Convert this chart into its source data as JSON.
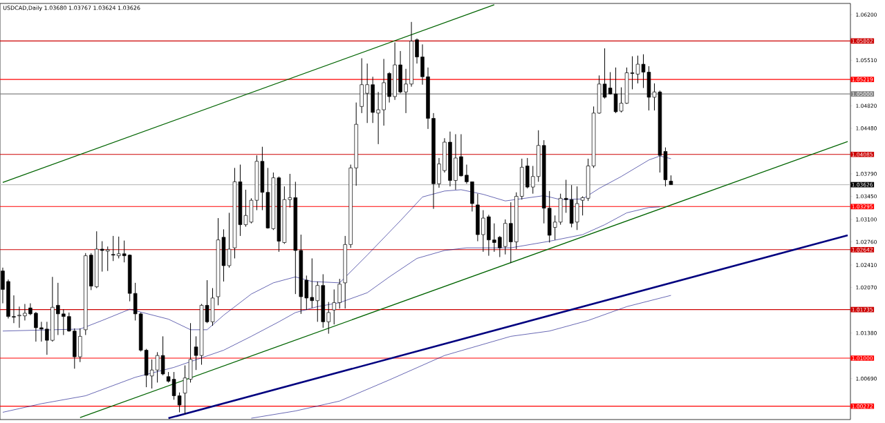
{
  "chart_data": {
    "type": "candlestick",
    "title": "USDCAD,Daily  1.03680 1.03767 1.03624 1.03626",
    "color": "#000000",
    "categories": [
      null,
      null,
      null,
      null,
      null,
      null,
      null,
      null,
      null,
      null,
      null,
      null,
      null,
      null,
      null,
      null,
      null,
      null,
      null,
      null,
      null,
      null,
      null,
      null,
      null,
      null,
      null,
      null,
      null,
      null,
      null,
      null,
      null,
      null,
      null,
      null,
      null,
      null,
      null,
      null,
      null,
      null,
      null,
      null,
      null,
      null,
      null,
      null,
      null,
      null,
      null,
      null,
      null,
      null,
      null,
      null,
      null,
      null,
      null,
      null,
      null,
      null,
      null,
      null,
      null,
      null,
      null,
      null,
      null,
      null,
      null,
      null,
      null,
      null,
      null,
      null,
      null,
      null,
      null,
      null,
      null,
      null,
      null,
      null,
      null,
      null,
      null,
      null,
      null,
      null,
      null,
      null,
      null,
      null,
      null,
      null,
      null,
      null,
      null,
      null,
      null,
      null,
      null,
      null,
      null,
      null,
      null,
      null,
      null,
      null,
      null,
      null,
      null,
      null,
      null,
      null,
      null,
      null,
      null,
      null,
      null,
      null,
      null,
      null,
      null,
      null,
      null,
      null,
      null,
      null,
      null,
      null,
      null,
      null,
      null,
      null,
      null,
      null,
      null,
      null,
      null,
      null,
      null,
      null,
      null,
      null,
      null,
      null,
      null,
      null,
      null,
      null,
      null,
      null
    ],
    "ohlc": [
      [
        1.0232,
        1.0237,
        1.0183,
        1.0204
      ],
      [
        1.0216,
        1.0219,
        1.016,
        1.0163
      ],
      [
        1.0163,
        1.0195,
        1.0153,
        1.0162
      ],
      [
        1.0164,
        1.0178,
        1.0146,
        1.0165
      ],
      [
        1.0164,
        1.0182,
        1.0157,
        1.0168
      ],
      [
        1.0176,
        1.0183,
        1.0165,
        1.0167
      ],
      [
        1.0168,
        1.017,
        1.0125,
        1.0146
      ],
      [
        1.0146,
        1.0155,
        1.0125,
        1.0144
      ],
      [
        1.0144,
        1.0155,
        1.0105,
        1.0127
      ],
      [
        1.0127,
        1.0223,
        1.0125,
        1.0177
      ],
      [
        1.018,
        1.0214,
        1.0135,
        1.0167
      ],
      [
        1.0167,
        1.0174,
        1.0135,
        1.0163
      ],
      [
        1.0163,
        1.0169,
        1.014,
        1.0141
      ],
      [
        1.0141,
        1.0145,
        1.0084,
        1.0102
      ],
      [
        1.0102,
        1.0145,
        1.0094,
        1.0133
      ],
      [
        1.0143,
        1.0259,
        1.0135,
        1.0255
      ],
      [
        1.0256,
        1.0259,
        1.0203,
        1.0209
      ],
      [
        1.0208,
        1.0292,
        1.0206,
        1.0265
      ],
      [
        1.0265,
        1.0277,
        1.0231,
        1.0263
      ],
      [
        1.0262,
        1.0269,
        1.0232,
        1.0264
      ],
      [
        1.0257,
        1.0285,
        1.0247,
        1.0256
      ],
      [
        1.0255,
        1.0284,
        1.0251,
        1.0258
      ],
      [
        1.0258,
        1.0278,
        1.0245,
        1.0255
      ],
      [
        1.0256,
        1.0257,
        1.0186,
        1.0198
      ],
      [
        1.0198,
        1.0214,
        1.0157,
        1.0167
      ],
      [
        1.0167,
        1.0169,
        1.011,
        1.0112
      ],
      [
        1.0112,
        1.0114,
        1.0056,
        1.0074
      ],
      [
        1.0073,
        1.0098,
        1.0054,
        1.0082
      ],
      [
        1.0082,
        1.0109,
        1.0063,
        1.0104
      ],
      [
        1.0104,
        1.0133,
        1.0074,
        1.0076
      ],
      [
        1.0072,
        1.0079,
        1.0063,
        1.0065
      ],
      [
        1.0068,
        1.0079,
        1.0037,
        1.0043
      ],
      [
        1.0043,
        1.0048,
        1.0018,
        1.0029
      ],
      [
        1.0047,
        1.0089,
        1.0015,
        1.007
      ],
      [
        1.0068,
        1.0153,
        1.0063,
        1.0098
      ],
      [
        1.0117,
        1.0133,
        1.0082,
        1.0104
      ],
      [
        1.0104,
        1.0182,
        1.009,
        1.018
      ],
      [
        1.018,
        1.0218,
        1.0153,
        1.0155
      ],
      [
        1.0155,
        1.0206,
        1.0149,
        1.0191
      ],
      [
        1.0193,
        1.0312,
        1.018,
        1.0279
      ],
      [
        1.0283,
        1.0295,
        1.0216,
        1.024
      ],
      [
        1.024,
        1.032,
        1.0237,
        1.0265
      ],
      [
        1.0267,
        1.0388,
        1.0251,
        1.0367
      ],
      [
        1.0367,
        1.0393,
        1.0285,
        1.0302
      ],
      [
        1.0302,
        1.0355,
        1.0299,
        1.0316
      ],
      [
        1.0306,
        1.0342,
        1.0304,
        1.0339
      ],
      [
        1.0339,
        1.0407,
        1.0324,
        1.0398
      ],
      [
        1.0398,
        1.042,
        1.0324,
        1.0351
      ],
      [
        1.0351,
        1.0388,
        1.0296,
        1.0297
      ],
      [
        1.0296,
        1.0381,
        1.0294,
        1.0373
      ],
      [
        1.0373,
        1.0375,
        1.0261,
        1.0277
      ],
      [
        1.0275,
        1.036,
        1.0273,
        1.034
      ],
      [
        1.034,
        1.0379,
        1.0328,
        1.0343
      ],
      [
        1.0343,
        1.0367,
        1.0197,
        1.0263
      ],
      [
        1.0263,
        1.0287,
        1.0167,
        1.0193
      ],
      [
        1.0218,
        1.0225,
        1.0173,
        1.0191
      ],
      [
        1.0192,
        1.0251,
        1.0176,
        1.0187
      ],
      [
        1.0187,
        1.0216,
        1.0155,
        1.021
      ],
      [
        1.021,
        1.0227,
        1.0146,
        1.0155
      ],
      [
        1.0155,
        1.0185,
        1.0137,
        1.0169
      ],
      [
        1.0173,
        1.0204,
        1.0151,
        1.0184
      ],
      [
        1.0184,
        1.022,
        1.0175,
        1.0212
      ],
      [
        1.0214,
        1.0285,
        1.0175,
        1.0272
      ],
      [
        1.0272,
        1.0393,
        1.0267,
        1.0388
      ],
      [
        1.0388,
        1.0487,
        1.0361,
        1.0454
      ],
      [
        1.0481,
        1.0554,
        1.0471,
        1.0514
      ],
      [
        1.0501,
        1.0546,
        1.0456,
        1.0514
      ],
      [
        1.0514,
        1.0526,
        1.0456,
        1.0472
      ],
      [
        1.0471,
        1.0503,
        1.0424,
        1.0476
      ],
      [
        1.0476,
        1.0553,
        1.0452,
        1.0517
      ],
      [
        1.0531,
        1.0533,
        1.0487,
        1.0496
      ],
      [
        1.0496,
        1.0578,
        1.0491,
        1.0544
      ],
      [
        1.0544,
        1.0565,
        1.0501,
        1.0503
      ],
      [
        1.0503,
        1.0538,
        1.0471,
        1.0515
      ],
      [
        1.0515,
        1.0609,
        1.0511,
        1.058
      ],
      [
        1.0582,
        1.0584,
        1.0546,
        1.0556
      ],
      [
        1.0556,
        1.0575,
        1.0514,
        1.0526
      ],
      [
        1.0526,
        1.054,
        1.0447,
        1.0463
      ],
      [
        1.0463,
        1.0471,
        1.0326,
        1.0364
      ],
      [
        1.0364,
        1.0403,
        1.0358,
        1.0394
      ],
      [
        1.0384,
        1.0433,
        1.0381,
        1.0427
      ],
      [
        1.0427,
        1.0443,
        1.036,
        1.0369
      ],
      [
        1.0369,
        1.0439,
        1.0355,
        1.0403
      ],
      [
        1.0405,
        1.0439,
        1.0375,
        1.0376
      ],
      [
        1.0377,
        1.0393,
        1.0364,
        1.0367
      ],
      [
        1.0367,
        1.0367,
        1.0322,
        1.0334
      ],
      [
        1.0332,
        1.0349,
        1.0277,
        1.0287
      ],
      [
        1.0287,
        1.0324,
        1.0261,
        1.0312
      ],
      [
        1.0314,
        1.0317,
        1.0255,
        1.0279
      ],
      [
        1.0279,
        1.0304,
        1.0261,
        1.0275
      ],
      [
        1.0283,
        1.0285,
        1.0253,
        1.0267
      ],
      [
        1.0269,
        1.031,
        1.0257,
        1.0304
      ],
      [
        1.0304,
        1.0336,
        1.0244,
        1.0276
      ],
      [
        1.0276,
        1.0351,
        1.0265,
        1.0345
      ],
      [
        1.0345,
        1.0402,
        1.034,
        1.0389
      ],
      [
        1.0391,
        1.0403,
        1.0357,
        1.0359
      ],
      [
        1.0359,
        1.0391,
        1.0349,
        1.0375
      ],
      [
        1.0375,
        1.0445,
        1.0367,
        1.0422
      ],
      [
        1.0422,
        1.043,
        1.0304,
        1.0327
      ],
      [
        1.0327,
        1.0353,
        1.0275,
        1.0286
      ],
      [
        1.0298,
        1.0316,
        1.0279,
        1.0306
      ],
      [
        1.0306,
        1.0349,
        1.0302,
        1.0342
      ],
      [
        1.0342,
        1.037,
        1.032,
        1.034
      ],
      [
        1.034,
        1.0362,
        1.0298,
        1.0304
      ],
      [
        1.0306,
        1.036,
        1.0294,
        1.0334
      ],
      [
        1.0339,
        1.0345,
        1.0316,
        1.0343
      ],
      [
        1.0342,
        1.0402,
        1.0338,
        1.0391
      ],
      [
        1.0391,
        1.0481,
        1.0388,
        1.0471
      ],
      [
        1.0471,
        1.0528,
        1.047,
        1.0515
      ],
      [
        1.0515,
        1.0569,
        1.0493,
        1.0495
      ],
      [
        1.0509,
        1.0533,
        1.0499,
        1.05
      ],
      [
        1.05,
        1.054,
        1.0471,
        1.0473
      ],
      [
        1.0474,
        1.051,
        1.0472,
        1.0486
      ],
      [
        1.0486,
        1.054,
        1.0485,
        1.0532
      ],
      [
        1.0532,
        1.0557,
        1.0507,
        1.0531
      ],
      [
        1.053,
        1.0558,
        1.0516,
        1.0545
      ],
      [
        1.0545,
        1.056,
        1.0509,
        1.0533
      ],
      [
        1.0533,
        1.0542,
        1.0475,
        1.0495
      ],
      [
        1.0495,
        1.0516,
        1.0475,
        1.0503
      ],
      [
        1.0503,
        1.0505,
        1.0381,
        1.0407
      ],
      [
        1.0413,
        1.0419,
        1.036,
        1.037
      ],
      [
        1.0368,
        1.03767,
        1.03624,
        1.03626
      ],
      null,
      null,
      null,
      null,
      null,
      null,
      null,
      null,
      null,
      null,
      null,
      null,
      null,
      null,
      null,
      null,
      null,
      null,
      null,
      null,
      null,
      null,
      null,
      null,
      null,
      null,
      null,
      null,
      null,
      null,
      null,
      null
    ],
    "series": [
      {
        "type": "line",
        "color": "#000080",
        "values": [
          1.0141,
          null,
          null,
          null,
          null,
          null,
          null,
          null,
          null,
          null,
          null,
          null,
          null,
          null,
          1.0144,
          null,
          null,
          null,
          1.0157,
          null,
          null,
          null,
          null,
          1.0174,
          null,
          null,
          null,
          null,
          null,
          null,
          1.0159,
          null,
          null,
          null,
          1.0143,
          null,
          null,
          1.0143,
          null,
          null,
          1.0165,
          null,
          null,
          null,
          null,
          1.0197,
          null,
          null,
          null,
          1.0214,
          null,
          null,
          null,
          1.0223,
          null,
          null,
          1.0216,
          null,
          null,
          null,
          null,
          1.0214,
          null,
          null,
          null,
          null,
          1.0256,
          null,
          null,
          null,
          null,
          null,
          1.0308,
          null,
          null,
          null,
          1.0344,
          null,
          null,
          null,
          1.0353,
          null,
          null,
          1.0355,
          null,
          null,
          null,
          1.0348,
          null,
          null,
          null,
          1.0338,
          null,
          null,
          null,
          null,
          null,
          null,
          1.0346,
          null,
          null,
          1.034,
          null,
          null,
          null,
          1.0341,
          null,
          null,
          1.0357,
          null,
          null,
          null,
          1.0375,
          null,
          null,
          null,
          null,
          1.04,
          null,
          1.0406,
          null,
          1.0402,
          null,
          null,
          null,
          null,
          null,
          null,
          null,
          null,
          null,
          null,
          null,
          null,
          null,
          null,
          null,
          null,
          null,
          null,
          null,
          null,
          null,
          null,
          null,
          null,
          null,
          null,
          null,
          null,
          null,
          null,
          null,
          null
        ]
      },
      {
        "type": "line",
        "color": "#000080",
        "values": [
          1.0018,
          null,
          null,
          null,
          null,
          null,
          null,
          1.0031,
          null,
          null,
          null,
          null,
          null,
          null,
          null,
          1.0043,
          null,
          null,
          null,
          null,
          null,
          null,
          null,
          null,
          1.0071,
          null,
          null,
          null,
          null,
          null,
          null,
          1.0086,
          null,
          null,
          null,
          null,
          null,
          null,
          null,
          null,
          1.0112,
          null,
          null,
          null,
          null,
          1.0133,
          null,
          null,
          null,
          null,
          1.0155,
          null,
          null,
          1.0169,
          null,
          null,
          null,
          1.0178,
          null,
          null,
          null,
          1.0184,
          null,
          null,
          null,
          null,
          1.0199,
          null,
          null,
          null,
          1.0223,
          null,
          null,
          null,
          null,
          1.0251,
          null,
          null,
          null,
          null,
          1.0263,
          null,
          null,
          null,
          1.0267,
          null,
          null,
          null,
          null,
          null,
          null,
          null,
          1.0267,
          null,
          null,
          null,
          null,
          null,
          null,
          1.0277,
          null,
          null,
          null,
          null,
          null,
          1.0287,
          null,
          null,
          null,
          1.0302,
          null,
          null,
          null,
          1.032,
          null,
          null,
          null,
          1.0328,
          null,
          1.0329,
          null,
          null,
          null,
          null,
          null,
          null,
          null,
          null,
          null,
          null,
          null,
          null,
          null,
          null,
          null,
          null,
          null,
          null,
          null,
          null,
          null,
          null,
          null,
          null,
          null,
          null,
          null,
          null,
          null,
          null,
          null,
          null,
          null,
          null
        ]
      },
      {
        "type": "line",
        "color": "#000080",
        "values": [
          null,
          null,
          null,
          null,
          null,
          null,
          null,
          null,
          null,
          null,
          null,
          null,
          null,
          null,
          null,
          null,
          null,
          null,
          null,
          null,
          null,
          null,
          null,
          null,
          null,
          null,
          null,
          null,
          null,
          null,
          null,
          null,
          null,
          null,
          null,
          null,
          null,
          null,
          null,
          null,
          null,
          null,
          null,
          null,
          null,
          1.0009,
          null,
          null,
          null,
          null,
          null,
          null,
          null,
          1.002,
          null,
          null,
          null,
          null,
          null,
          null,
          null,
          1.0035,
          null,
          null,
          null,
          null,
          null,
          null,
          null,
          null,
          1.0067,
          null,
          null,
          null,
          null,
          null,
          null,
          null,
          null,
          null,
          1.0104,
          null,
          null,
          null,
          null,
          null,
          null,
          null,
          null,
          null,
          null,
          null,
          1.0133,
          null,
          null,
          null,
          null,
          null,
          null,
          1.0141,
          null,
          null,
          null,
          null,
          null,
          null,
          1.0157,
          null,
          null,
          null,
          null,
          null,
          null,
          1.0178,
          null,
          null,
          null,
          null,
          null,
          null,
          null,
          1.0195,
          null,
          null,
          null,
          null,
          null,
          null,
          null,
          null,
          null,
          null,
          null,
          null,
          null,
          null,
          null,
          null,
          null,
          null,
          null,
          null,
          null,
          null,
          null,
          null,
          null,
          null,
          null,
          null,
          null,
          null,
          null,
          null
        ]
      },
      {
        "type": "line",
        "color": "#006400",
        "values": [
          1.0366,
          null,
          null,
          null,
          null,
          null,
          null,
          null,
          null,
          null,
          null,
          null,
          null,
          null,
          null,
          null,
          null,
          null,
          null,
          null,
          null,
          null,
          null,
          null,
          null,
          null,
          null,
          null,
          null,
          null,
          null,
          null,
          null,
          null,
          null,
          null,
          null,
          null,
          null,
          null,
          null,
          null,
          null,
          null,
          null,
          null,
          null,
          null,
          null,
          null,
          null,
          null,
          null,
          null,
          null,
          null,
          null,
          null,
          null,
          null,
          null,
          null,
          null,
          null,
          null,
          null,
          null,
          null,
          null,
          null,
          null,
          null,
          null,
          null,
          null,
          null,
          null,
          null,
          null,
          null,
          null,
          null,
          null,
          null,
          null,
          null,
          null,
          null,
          null,
          1.0635,
          null,
          null,
          null,
          null,
          null,
          null,
          null,
          null,
          null,
          null,
          null,
          null,
          null,
          null,
          null,
          null,
          null,
          null,
          null,
          null,
          null,
          null,
          null,
          null,
          null,
          null,
          null,
          null,
          null,
          null,
          null,
          null,
          null,
          null,
          null,
          null,
          null,
          null,
          null,
          null,
          null,
          null,
          null,
          null,
          null,
          null,
          null,
          null,
          null,
          null,
          null,
          null,
          null,
          null,
          null,
          null,
          null,
          null,
          null,
          null,
          null,
          null,
          null,
          null
        ]
      },
      {
        "type": "line",
        "color": "#006400",
        "values": [
          null,
          null,
          null,
          null,
          null,
          null,
          null,
          null,
          null,
          null,
          null,
          null,
          null,
          null,
          1.001,
          null,
          null,
          null,
          null,
          null,
          null,
          null,
          null,
          null,
          null,
          null,
          null,
          null,
          null,
          null,
          null,
          null,
          null,
          null,
          null,
          null,
          null,
          null,
          null,
          null,
          null,
          null,
          null,
          null,
          null,
          null,
          null,
          null,
          null,
          null,
          null,
          null,
          null,
          null,
          null,
          null,
          null,
          null,
          null,
          null,
          null,
          null,
          null,
          null,
          null,
          null,
          null,
          null,
          null,
          null,
          null,
          null,
          null,
          null,
          null,
          null,
          null,
          null,
          null,
          null,
          null,
          null,
          null,
          null,
          null,
          null,
          null,
          null,
          null,
          null,
          null,
          null,
          null,
          null,
          null,
          null,
          null,
          null,
          null,
          null,
          null,
          null,
          null,
          null,
          null,
          null,
          null,
          null,
          null,
          null,
          null,
          null,
          null,
          null,
          null,
          null,
          null,
          null,
          null,
          null,
          null,
          null,
          null,
          null,
          null,
          null,
          null,
          null,
          null,
          null,
          null,
          null,
          null,
          null,
          null,
          null,
          null,
          null,
          null,
          null,
          null,
          null,
          null,
          null,
          null,
          null,
          null,
          null,
          null,
          null,
          null,
          null,
          null,
          1.0428
        ]
      },
      {
        "type": "line",
        "color": "#00007f",
        "values": [
          null,
          null,
          null,
          null,
          null,
          null,
          null,
          null,
          null,
          null,
          null,
          null,
          null,
          null,
          null,
          null,
          null,
          null,
          null,
          null,
          null,
          null,
          null,
          null,
          null,
          null,
          null,
          null,
          null,
          null,
          1.0009,
          null,
          null,
          null,
          null,
          null,
          null,
          null,
          null,
          null,
          null,
          null,
          null,
          null,
          null,
          null,
          null,
          null,
          null,
          null,
          null,
          null,
          null,
          null,
          null,
          null,
          null,
          null,
          null,
          null,
          null,
          null,
          null,
          null,
          null,
          null,
          null,
          null,
          null,
          null,
          null,
          null,
          null,
          null,
          null,
          null,
          null,
          null,
          null,
          null,
          null,
          null,
          null,
          null,
          null,
          null,
          null,
          null,
          null,
          null,
          null,
          null,
          null,
          null,
          null,
          null,
          null,
          null,
          null,
          null,
          null,
          null,
          null,
          null,
          null,
          null,
          null,
          null,
          null,
          null,
          null,
          null,
          null,
          null,
          null,
          null,
          null,
          null,
          null,
          null,
          null,
          null,
          null,
          null,
          null,
          null,
          null,
          null,
          null,
          null,
          null,
          null,
          null,
          null,
          null,
          null,
          null,
          null,
          null,
          null,
          null,
          null,
          null,
          null,
          null,
          null,
          null,
          null,
          null,
          null,
          null,
          null,
          null,
          1.0286
        ]
      }
    ],
    "ref_lines": [
      {
        "axis": "y",
        "value": 1.05802,
        "label": "1.05802",
        "color": "#cc0000"
      },
      {
        "axis": "y",
        "value": 1.05219,
        "label": "1.05219",
        "color": "#ff0000"
      },
      {
        "axis": "y",
        "value": 1.05,
        "label": "1.05000",
        "color": "#808080"
      },
      {
        "axis": "y",
        "value": 1.04085,
        "label": "1.04085",
        "color": "#cc0000"
      },
      {
        "axis": "y",
        "value": 1.03626,
        "label": "1.03626",
        "color": "#c0c0c0"
      },
      {
        "axis": "y",
        "value": 1.03295,
        "label": "1.03295",
        "color": "#ff0000"
      },
      {
        "axis": "y",
        "value": 1.02642,
        "label": "1.02642",
        "color": "#cc0000"
      },
      {
        "axis": "y",
        "value": 1.01735,
        "label": "1.01735",
        "color": "#cc0000"
      },
      {
        "axis": "y",
        "value": 1.01,
        "label": "1.01000",
        "color": "#ff0000"
      },
      {
        "axis": "y",
        "value": 1.00272,
        "label": "1.00272",
        "color": "#ff0000"
      }
    ],
    "ylim": [
      1.0007,
      1.0637
    ],
    "yticks": [
      {
        "value": 1.062,
        "label": "1.06200"
      },
      {
        "value": 1.0586,
        "label": null
      },
      {
        "value": 1.0551,
        "label": "1.05510"
      },
      {
        "value": 1.0517,
        "label": null
      },
      {
        "value": 1.0482,
        "label": "1.04820"
      },
      {
        "value": 1.0448,
        "label": "1.04480"
      },
      {
        "value": 1.0413,
        "label": null
      },
      {
        "value": 1.0379,
        "label": "1.03790"
      },
      {
        "value": 1.0345,
        "label": "1.03450"
      },
      {
        "value": 1.031,
        "label": "1.03100"
      },
      {
        "value": 1.0276,
        "label": "1.02760"
      },
      {
        "value": 1.0241,
        "label": "1.02410"
      },
      {
        "value": 1.0207,
        "label": "1.02070"
      },
      {
        "value": 1.0173,
        "label": null
      },
      {
        "value": 1.0138,
        "label": "1.01380"
      },
      {
        "value": 1.0104,
        "label": null
      },
      {
        "value": 1.0069,
        "label": "1.00690"
      },
      {
        "value": 1.0035,
        "label": null
      }
    ],
    "tick_labels": "y"
  }
}
